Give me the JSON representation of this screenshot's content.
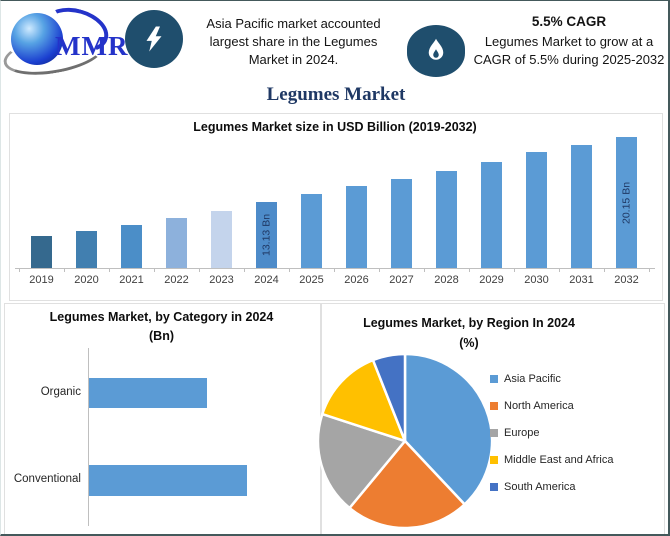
{
  "window": {
    "background": "#ffffff",
    "border_color": "#44595b"
  },
  "logo": {
    "text": "MMR",
    "text_color": "#2433c9"
  },
  "header": {
    "icon_bg": "#1f4e6d",
    "highlight1": {
      "icon": "lightning-icon",
      "text": "Asia Pacific market accounted largest share in the Legumes Market in 2024."
    },
    "highlight2": {
      "icon": "flame-icon",
      "title": "5.5% CAGR",
      "text": "Legumes Market to grow at a CAGR of 5.5% during 2025-2032"
    }
  },
  "main_title": {
    "text": "Legumes Market",
    "color": "#1f3864"
  },
  "chart_data": [
    {
      "type": "bar",
      "title": "Legumes Market size in USD Billion (2019-2032)",
      "unit": "USD Billion",
      "categories": [
        "2019",
        "2020",
        "2021",
        "2022",
        "2023",
        "2024",
        "2025",
        "2026",
        "2027",
        "2028",
        "2029",
        "2030",
        "2031",
        "2032"
      ],
      "values": [
        9.45,
        10.0,
        10.65,
        11.4,
        12.15,
        13.13,
        14.0,
        14.9,
        15.6,
        16.5,
        17.5,
        18.5,
        19.3,
        20.15
      ],
      "labeled_points": {
        "2024": "13.13 Bn",
        "2032": "20.15 Bn"
      },
      "bar_colors": [
        "#35698e",
        "#417fb0",
        "#4b8ec8",
        "#8db1dc",
        "#c4d4ec",
        "#4d8bc9",
        "#5b9bd5",
        "#5b9bd5",
        "#5b9bd5",
        "#5b9bd5",
        "#5b9bd5",
        "#5b9bd5",
        "#5b9bd5",
        "#5b9bd5"
      ],
      "ylim": [
        6,
        20.5
      ],
      "grid": false,
      "note": "only 2024 and 2032 carry data labels; remaining values estimated from bar heights"
    },
    {
      "type": "bar",
      "orientation": "horizontal",
      "title": "Legumes Market, by Category in 2024",
      "subtitle": "(Bn)",
      "categories": [
        "Organic",
        "Conventional"
      ],
      "values": [
        5.6,
        7.5
      ],
      "bar_color": "#5b9bd5",
      "note": "values not labeled on chart; estimated from relative bar lengths"
    },
    {
      "type": "pie",
      "title": "Legumes Market, by Region In 2024",
      "subtitle": "(%)",
      "legend_position": "right",
      "slices": [
        {
          "label": "Asia Pacific",
          "value": 38,
          "color": "#5b9bd5"
        },
        {
          "label": "North America",
          "value": 23,
          "color": "#ed7d31"
        },
        {
          "label": "Europe",
          "value": 19,
          "color": "#a5a5a5"
        },
        {
          "label": "Middle East and Africa",
          "value": 14,
          "color": "#ffc000"
        },
        {
          "label": "South America",
          "value": 6,
          "color": "#4472c4"
        }
      ],
      "note": "percentages not labeled on chart; estimated from slice angles"
    }
  ]
}
